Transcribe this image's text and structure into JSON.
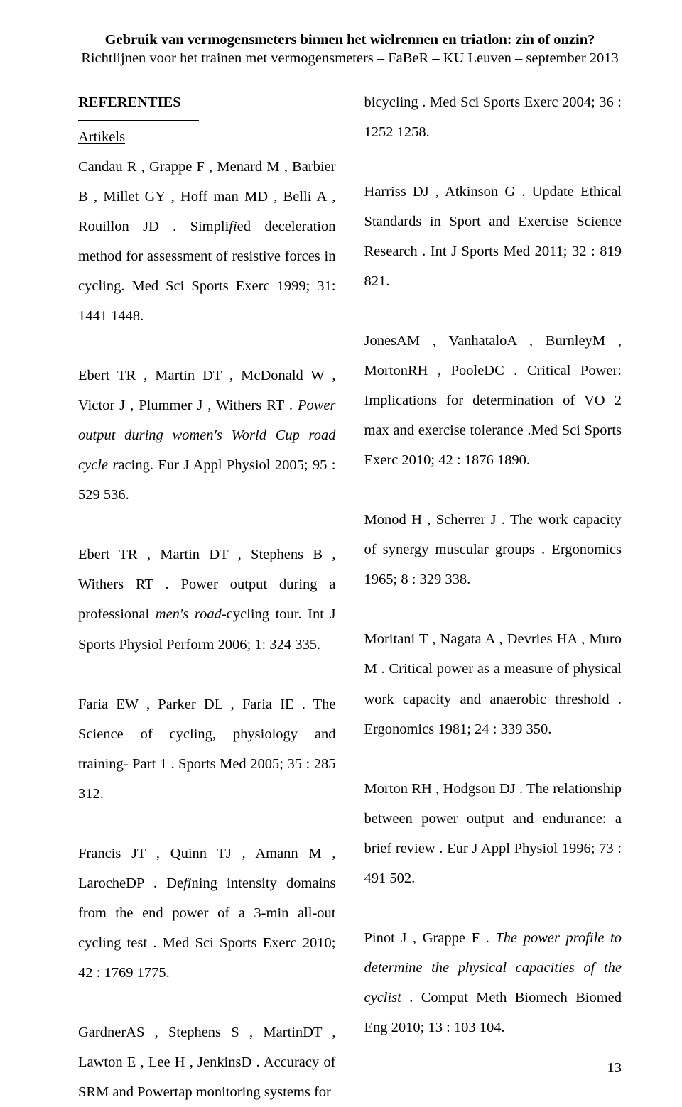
{
  "header": {
    "title_main": "Gebruik van vermogensmeters binnen het wielrennen en triatlon: zin of onzin?",
    "title_sub": "Richtlijnen voor het trainen met vermogensmeters – FaBeR – KU Leuven – september 2013"
  },
  "left": {
    "section_head": "REFERENTIES",
    "subhead": "Artikels",
    "p1a": "Candau R , Grappe F , Menard M , Barbier B , Millet GY , Hoff man MD , Belli A , Rouillon JD . Simpli",
    "p1b": "ed deceleration method for assessment of resistive forces in cycling. Med Sci Sports Exerc 1999; 31: 1441 1448.",
    "p2a": "Ebert TR , Martin DT , McDonald W , Victor J , Plummer J , Withers RT . ",
    "p2i": "Power output during women's World Cup road cycle r",
    "p2b": "acing. Eur J Appl Physiol 2005; 95 : 529 536.",
    "p3a": "Ebert TR , Martin DT , Stephens B , Withers RT . Power output during a professional ",
    "p3i": "men's road-",
    "p3b": "cycling tour. Int J Sports Physiol Perform 2006; 1: 324 335.",
    "p4": "Faria EW , Parker DL , Faria IE . The Science of cycling, physiology and training- Part 1 . Sports Med 2005; 35 : 285 312.",
    "p5a": "Francis JT , Quinn TJ , Amann M , LarocheDP . De",
    "p5b": "ning intensity domains from the end power of a 3-min all-out cycling test . Med Sci Sports Exerc 2010; 42 : 1769 1775.",
    "p6": "GardnerAS , Stephens S , MartinDT , Lawton E , Lee H , JenkinsD . Accuracy of SRM and Powertap monitoring systems for"
  },
  "right": {
    "p1": "bicycling . Med Sci Sports Exerc 2004; 36 : 1252 1258.",
    "p2": "Harriss DJ , Atkinson G . Update Ethical Standards in Sport and Exercise Science Research . Int J Sports Med 2011; 32 : 819 821.",
    "p3": "JonesAM , VanhataloA , BurnleyM , MortonRH , PooleDC . Critical Power: Implications for determination of VO 2 max and exercise tolerance .Med Sci Sports Exerc 2010; 42 : 1876 1890.",
    "p4": "Monod H , Scherrer J . The work capacity of synergy muscular groups . Ergonomics 1965; 8 : 329 338.",
    "p5": "Moritani T , Nagata A , Devries HA , Muro M . Critical power as a measure of physical work capacity and anaerobic threshold . Ergonomics 1981; 24 : 339 350.",
    "p6": "Morton RH , Hodgson DJ . The relationship between power output and endurance: a brief review . Eur J Appl Physiol 1996; 73 : 491 502.",
    "p7a": "Pinot J , Grappe F . ",
    "p7i": "The power profile to determine the physical capacities of the cyclist",
    "p7b": " . Comput Meth Biomech Biomed Eng 2010; 13 : 103 104."
  },
  "page_number": "13"
}
